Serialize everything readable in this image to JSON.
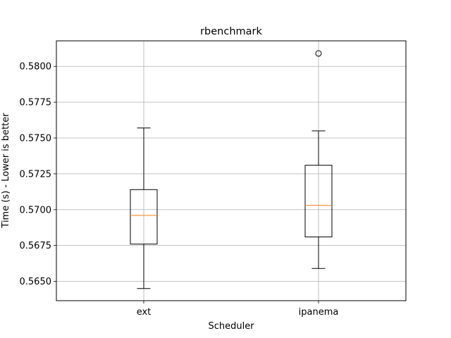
{
  "chart_data": {
    "type": "box",
    "title": "rbenchmark",
    "xlabel": "Scheduler",
    "ylabel": "Time (s) - Lower is better",
    "categories": [
      "ext",
      "ipanema"
    ],
    "ylim": [
      0.56365,
      0.58178
    ],
    "yticks": [
      0.565,
      0.5675,
      0.57,
      0.5725,
      0.575,
      0.5775,
      0.58
    ],
    "ytick_labels": [
      "0.5650",
      "0.5675",
      "0.5700",
      "0.5725",
      "0.5750",
      "0.5775",
      "0.5800"
    ],
    "grid": true,
    "boxes": [
      {
        "name": "ext",
        "whisker_low": 0.5645,
        "q1": 0.5676,
        "median": 0.5696,
        "q3": 0.5714,
        "whisker_high": 0.5757,
        "fliers": []
      },
      {
        "name": "ipanema",
        "whisker_low": 0.5659,
        "q1": 0.5681,
        "median": 0.5703,
        "q3": 0.5731,
        "whisker_high": 0.5755,
        "fliers": [
          0.5809
        ]
      }
    ],
    "colors": {
      "box": "#000000",
      "median": "#ff7f0e",
      "grid": "#b0b0b0"
    }
  }
}
